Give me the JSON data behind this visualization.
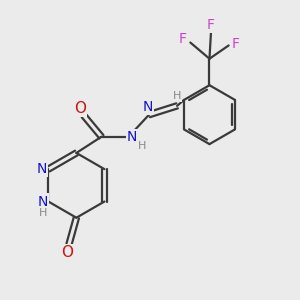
{
  "bg_color": "#ebebeb",
  "bond_color": "#3a3a3a",
  "nitrogen_color": "#1414cc",
  "oxygen_color": "#cc1414",
  "fluorine_color": "#cc44cc",
  "hydrogen_color": "#888888",
  "line_width": 1.6,
  "figsize": [
    3.0,
    3.0
  ],
  "dpi": 100,
  "xlim": [
    0,
    10
  ],
  "ylim": [
    0,
    10
  ]
}
